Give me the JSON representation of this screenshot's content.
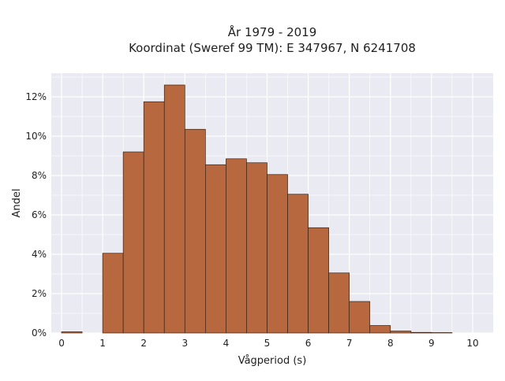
{
  "chart_data": {
    "type": "bar",
    "title": "År 1979 - 2019",
    "subtitle": "Koordinat (Sweref 99 TM): E 347967, N 6241708",
    "xlabel": "Vågperiod (s)",
    "ylabel": "Andel",
    "bin_width": 0.5,
    "bins_start": [
      0,
      0.5,
      1,
      1.5,
      2,
      2.5,
      3,
      3.5,
      4,
      4.5,
      5,
      5.5,
      6,
      6.5,
      7,
      7.5,
      8,
      8.5,
      9,
      9.5
    ],
    "values": [
      0.06,
      0,
      4.05,
      9.2,
      11.75,
      12.6,
      10.35,
      8.55,
      8.85,
      8.65,
      8.05,
      7.05,
      5.35,
      3.05,
      1.6,
      0.38,
      0.1,
      0.03,
      0.02,
      0
    ],
    "xlim": [
      -0.25,
      10.5
    ],
    "ylim": [
      0,
      13.2
    ],
    "x_ticks": [
      "0",
      "1",
      "2",
      "3",
      "4",
      "5",
      "6",
      "7",
      "8",
      "9",
      "10"
    ],
    "y_ticks": [
      "0%",
      "2%",
      "4%",
      "6%",
      "8%",
      "10%",
      "12%"
    ],
    "grid": true,
    "colors": {
      "bar": "#b8683f",
      "bar_edge": "#3a2212",
      "plot_bg": "#eaeaf2",
      "grid": "#ffffff"
    }
  }
}
